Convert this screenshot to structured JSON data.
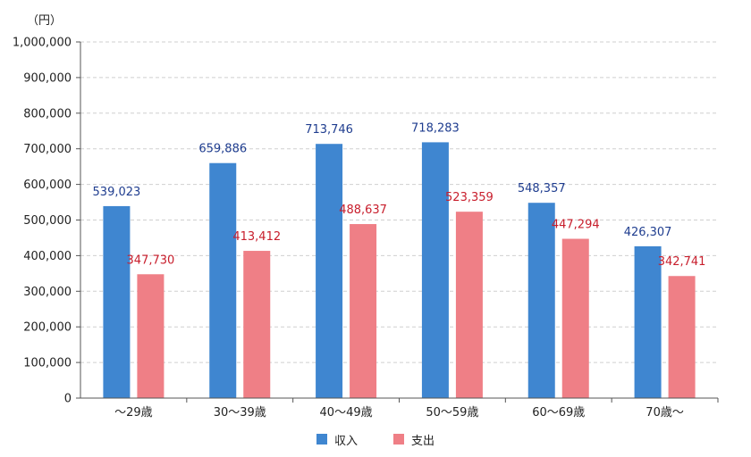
{
  "chart_data": {
    "type": "bar",
    "unit_label": "（円）",
    "categories": [
      "～29歳",
      "30～39歳",
      "40～49歳",
      "50～59歳",
      "60～69歳",
      "70歳～"
    ],
    "series": [
      {
        "name": "収入",
        "color": "#3f86d0",
        "label_color": "#1f3d8f",
        "values": [
          539023,
          659886,
          713746,
          718283,
          548357,
          426307
        ]
      },
      {
        "name": "支出",
        "color": "#ef7f86",
        "label_color": "#c81e2c",
        "values": [
          347730,
          413412,
          488637,
          523359,
          447294,
          342741
        ]
      }
    ],
    "ylim": [
      0,
      1000000
    ],
    "yticks": [
      0,
      100000,
      200000,
      300000,
      400000,
      500000,
      600000,
      700000,
      800000,
      900000,
      1000000
    ],
    "ytick_labels": [
      "0",
      "100,000",
      "200,000",
      "300,000",
      "400,000",
      "500,000",
      "600,000",
      "700,000",
      "800,000",
      "900,000",
      "1,000,000"
    ],
    "data_labels": [
      [
        "539,023",
        "659,886",
        "713,746",
        "718,283",
        "548,357",
        "426,307"
      ],
      [
        "347,730",
        "413,412",
        "488,637",
        "523,359",
        "447,294",
        "342,741"
      ]
    ],
    "grid": true,
    "legend_position": "bottom"
  }
}
